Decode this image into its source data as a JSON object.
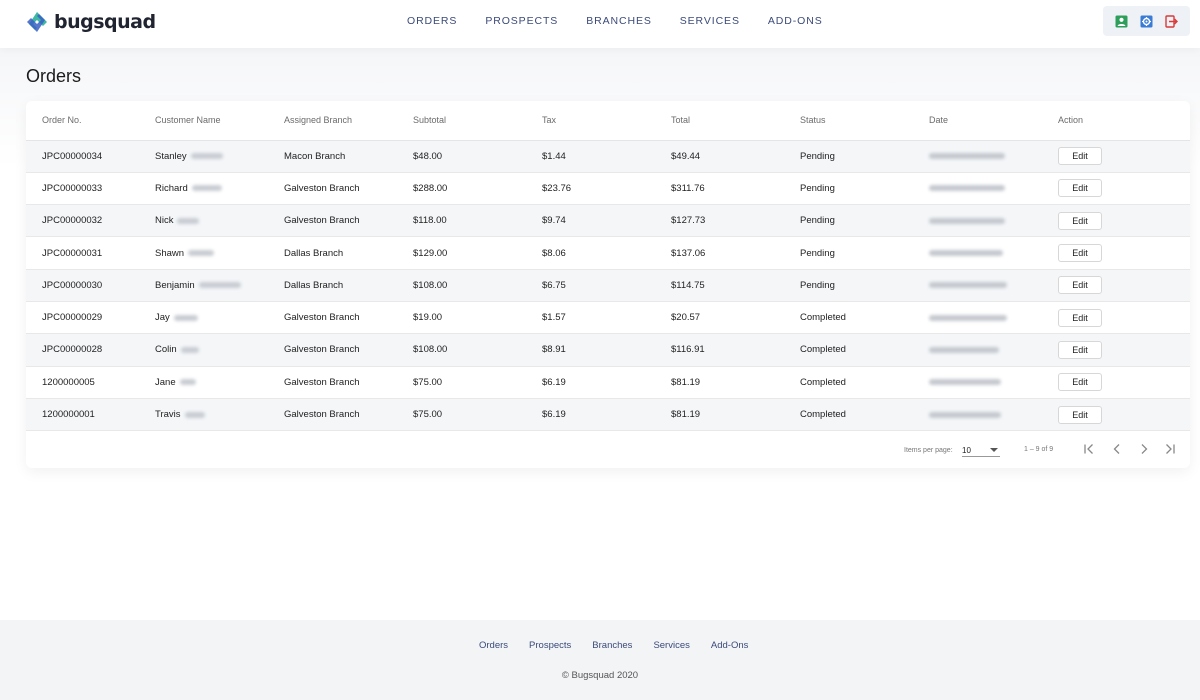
{
  "brand": {
    "name": "bugsquad",
    "logo_icon": "bugsquad-logo-icon"
  },
  "nav": {
    "items": [
      {
        "label": "ORDERS"
      },
      {
        "label": "PROSPECTS"
      },
      {
        "label": "BRANCHES"
      },
      {
        "label": "SERVICES"
      },
      {
        "label": "ADD-ONS"
      }
    ]
  },
  "toolbar": {
    "profile_icon": "user-profile-icon",
    "settings_icon": "settings-gear-icon",
    "logout_icon": "logout-icon",
    "colors": {
      "profile": "#2e9e5b",
      "settings": "#3a7bd5",
      "logout": "#d93a3a"
    }
  },
  "page": {
    "title": "Orders"
  },
  "table": {
    "columns": [
      "Order No.",
      "Customer Name",
      "Assigned Branch",
      "Subtotal",
      "Tax",
      "Total",
      "Status",
      "Date",
      "Action"
    ],
    "rows": [
      {
        "order_no": "JPC00000034",
        "customer_first": "Stanley",
        "branch": "Macon Branch",
        "subtotal": "$48.00",
        "tax": "$1.44",
        "total": "$49.44",
        "status": "Pending",
        "action": "Edit"
      },
      {
        "order_no": "JPC00000033",
        "customer_first": "Richard",
        "branch": "Galveston Branch",
        "subtotal": "$288.00",
        "tax": "$23.76",
        "total": "$311.76",
        "status": "Pending",
        "action": "Edit"
      },
      {
        "order_no": "JPC00000032",
        "customer_first": "Nick",
        "branch": "Galveston Branch",
        "subtotal": "$118.00",
        "tax": "$9.74",
        "total": "$127.73",
        "status": "Pending",
        "action": "Edit"
      },
      {
        "order_no": "JPC00000031",
        "customer_first": "Shawn",
        "branch": "Dallas Branch",
        "subtotal": "$129.00",
        "tax": "$8.06",
        "total": "$137.06",
        "status": "Pending",
        "action": "Edit"
      },
      {
        "order_no": "JPC00000030",
        "customer_first": "Benjamin",
        "branch": "Dallas Branch",
        "subtotal": "$108.00",
        "tax": "$6.75",
        "total": "$114.75",
        "status": "Pending",
        "action": "Edit"
      },
      {
        "order_no": "JPC00000029",
        "customer_first": "Jay",
        "branch": "Galveston Branch",
        "subtotal": "$19.00",
        "tax": "$1.57",
        "total": "$20.57",
        "status": "Completed",
        "action": "Edit"
      },
      {
        "order_no": "JPC00000028",
        "customer_first": "Colin",
        "branch": "Galveston Branch",
        "subtotal": "$108.00",
        "tax": "$8.91",
        "total": "$116.91",
        "status": "Completed",
        "action": "Edit"
      },
      {
        "order_no": "1200000005",
        "customer_first": "Jane",
        "branch": "Galveston Branch",
        "subtotal": "$75.00",
        "tax": "$6.19",
        "total": "$81.19",
        "status": "Completed",
        "action": "Edit"
      },
      {
        "order_no": "1200000001",
        "customer_first": "Travis",
        "branch": "Galveston Branch",
        "subtotal": "$75.00",
        "tax": "$6.19",
        "total": "$81.19",
        "status": "Completed",
        "action": "Edit"
      }
    ]
  },
  "paginator": {
    "items_per_page_label": "Items per page:",
    "items_per_page_value": "10",
    "range_label": "1 – 9 of 9",
    "first_icon": "first-page-icon",
    "prev_icon": "chevron-left-icon",
    "next_icon": "chevron-right-icon",
    "last_icon": "last-page-icon"
  },
  "footer": {
    "links": [
      {
        "label": "Orders"
      },
      {
        "label": "Prospects"
      },
      {
        "label": "Branches"
      },
      {
        "label": "Services"
      },
      {
        "label": "Add-Ons"
      }
    ],
    "copyright": "© Bugsquad 2020"
  }
}
